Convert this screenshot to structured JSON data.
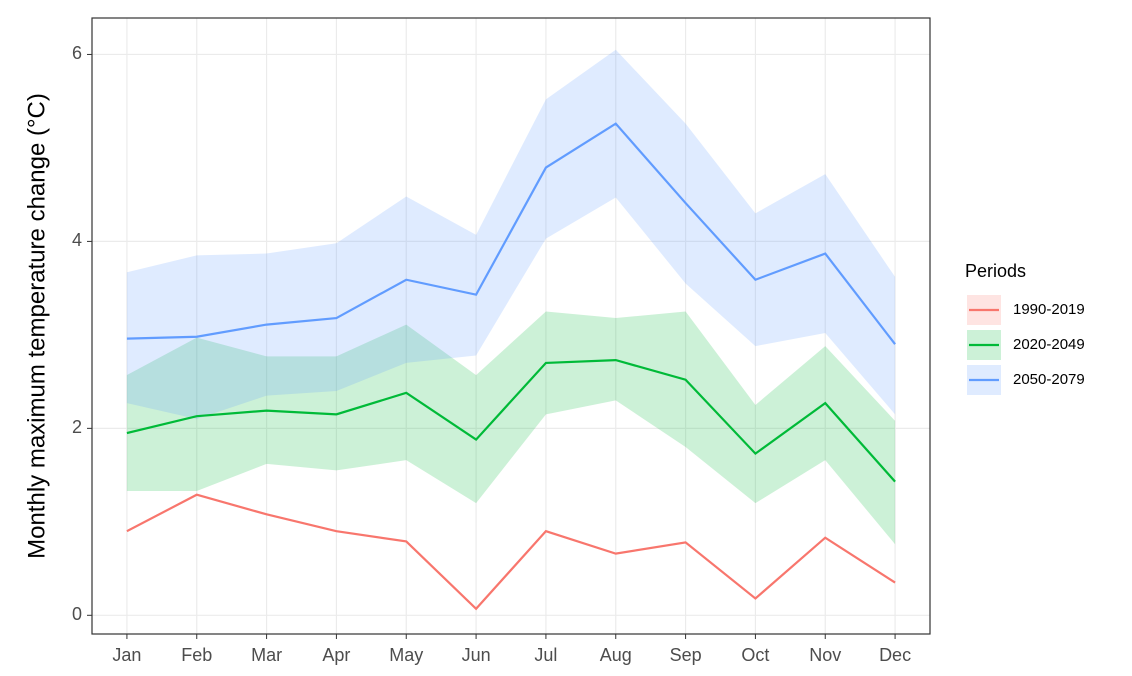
{
  "chart_data": {
    "type": "line",
    "y_label": "Monthly maximum temperature change (°C)",
    "legend_title": "Periods",
    "legend_position": "right",
    "grid": true,
    "categories": [
      "Jan",
      "Feb",
      "Mar",
      "Apr",
      "May",
      "Jun",
      "Jul",
      "Aug",
      "Sep",
      "Oct",
      "Nov",
      "Dec"
    ],
    "ylim": [
      -0.2,
      6.39
    ],
    "yticks": [
      0,
      2,
      4,
      6
    ],
    "series": [
      {
        "name": "1990-2019",
        "color": "#F8766D",
        "values": [
          0.9,
          1.29,
          1.08,
          0.9,
          0.79,
          0.07,
          0.9,
          0.66,
          0.78,
          0.18,
          0.83,
          0.35
        ]
      },
      {
        "name": "2020-2049",
        "color": "#00BA38",
        "values": [
          1.95,
          2.13,
          2.19,
          2.15,
          2.38,
          1.88,
          2.7,
          2.73,
          2.52,
          1.73,
          2.27,
          1.43
        ],
        "lower": [
          1.33,
          1.33,
          1.62,
          1.55,
          1.66,
          1.2,
          2.15,
          2.3,
          1.8,
          1.2,
          1.66,
          0.76
        ],
        "upper": [
          2.57,
          2.97,
          2.77,
          2.77,
          3.11,
          2.57,
          3.25,
          3.18,
          3.25,
          2.25,
          2.88,
          2.08
        ]
      },
      {
        "name": "2050-2079",
        "color": "#619CFF",
        "values": [
          2.96,
          2.98,
          3.11,
          3.18,
          3.59,
          3.43,
          4.79,
          5.26,
          4.41,
          3.59,
          3.87,
          2.9
        ],
        "lower": [
          2.27,
          2.1,
          2.35,
          2.4,
          2.7,
          2.78,
          4.03,
          4.47,
          3.55,
          2.88,
          3.02,
          2.15
        ],
        "upper": [
          3.67,
          3.85,
          3.87,
          3.98,
          4.48,
          4.07,
          5.52,
          6.05,
          5.26,
          4.3,
          4.72,
          3.62
        ]
      }
    ]
  }
}
